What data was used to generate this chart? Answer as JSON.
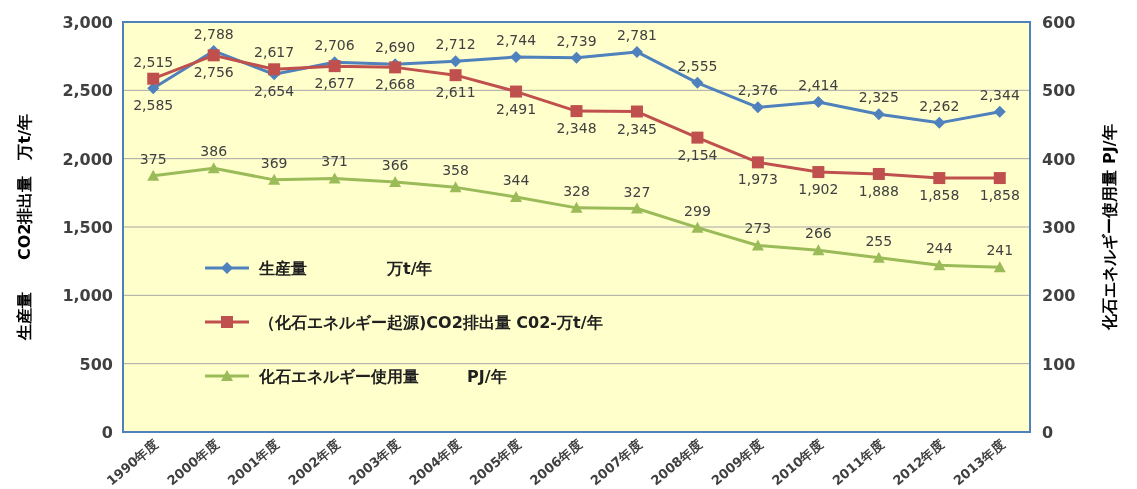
{
  "chart_data": {
    "type": "line",
    "categories": [
      "1990年度",
      "2000年度",
      "2001年度",
      "2002年度",
      "2003年度",
      "2004年度",
      "2005年度",
      "2006年度",
      "2007年度",
      "2008年度",
      "2009年度",
      "2010年度",
      "2011年度",
      "2012年度",
      "2013年度"
    ],
    "series": [
      {
        "name": "生産量　　　　　万t/年",
        "color": "#4f81bd",
        "marker": "diamond",
        "values": [
          2515,
          2788,
          2617,
          2706,
          2690,
          2712,
          2744,
          2739,
          2781,
          2555,
          2376,
          2414,
          2325,
          2262,
          2344
        ],
        "value_labels": [
          "2,515",
          "2,788",
          "2,617",
          "2,706",
          "2,690",
          "2,712",
          "2,744",
          "2,739",
          "2,781",
          "2,555",
          "2,376",
          "2,414",
          "2,325",
          "2,262",
          "2,344"
        ]
      },
      {
        "name": "（化石エネルギー起源)CO2排出量 C02-万t/年",
        "color": "#c0504d",
        "marker": "square",
        "values": [
          2585,
          2756,
          2654,
          2677,
          2668,
          2611,
          2491,
          2348,
          2345,
          2154,
          1973,
          1902,
          1888,
          1858,
          1858
        ],
        "value_labels": [
          "2,585",
          "2,756",
          "2,654",
          "2,677",
          "2,668",
          "2,611",
          "2,491",
          "2,348",
          "2,345",
          "2,154",
          "1,973",
          "1,902",
          "1,888",
          "1,858",
          "1,858"
        ]
      },
      {
        "name": "化石エネルギー使用量　　　PJ/年",
        "color": "#9bbb59",
        "marker": "triangle",
        "axis": "y2",
        "values": [
          375,
          386,
          369,
          371,
          366,
          358,
          344,
          328,
          327,
          299,
          273,
          266,
          255,
          244,
          241
        ],
        "value_labels": [
          "375",
          "386",
          "369",
          "371",
          "366",
          "358",
          "344",
          "328",
          "327",
          "299",
          "273",
          "266",
          "255",
          "244",
          "241"
        ]
      }
    ],
    "ylabel": "生産量　　CO2排出量　万t/年",
    "y2label": "化石エネルギー使用量 PJ/年",
    "ylim": [
      0,
      3000
    ],
    "yticks": [
      0,
      {
        "value": 500,
        "label": "500"
      },
      {
        "value": 1000,
        "label": "1,000"
      },
      {
        "value": 1500,
        "label": "1,500"
      },
      {
        "value": 2000,
        "label": "2,000"
      },
      {
        "value": 2500,
        "label": "2,500"
      },
      {
        "value": 3000,
        "label": "3,000"
      }
    ],
    "y2lim": [
      0,
      600
    ],
    "y2ticks": [
      0,
      100,
      200,
      300,
      400,
      500,
      600
    ],
    "grid": "y",
    "legend": "left"
  }
}
